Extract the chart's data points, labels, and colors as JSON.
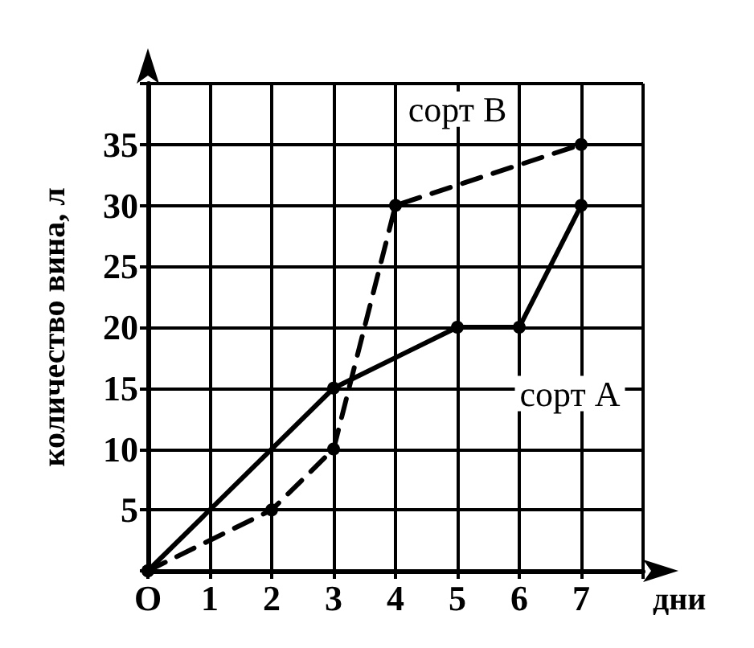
{
  "chart_data": {
    "type": "line",
    "xlabel": "дни",
    "ylabel": "количество вина, л",
    "series": [
      {
        "name": "сорт А",
        "color": "#000000",
        "x": [
          0,
          3,
          5,
          6,
          7
        ],
        "values": [
          0,
          15,
          20,
          20,
          30
        ],
        "line_style": "solid"
      },
      {
        "name": "сорт В",
        "color": "#000000",
        "x": [
          0,
          2,
          3,
          4,
          7
        ],
        "values": [
          0,
          5,
          10,
          30,
          35
        ],
        "line_style": "dashed"
      }
    ],
    "xlim": [
      0,
      8
    ],
    "xticks": [
      {
        "value": 0,
        "label": "O"
      },
      1,
      2,
      3,
      4,
      5,
      6,
      7,
      {
        "value": 8,
        "label": null
      }
    ],
    "ylim": [
      0,
      40
    ],
    "yticks": [
      {
        "value": 0,
        "label": null
      },
      5,
      10,
      15,
      20,
      25,
      30,
      35,
      {
        "value": 40,
        "label": null
      }
    ],
    "grid": true,
    "legend": false,
    "marker": "circle"
  }
}
